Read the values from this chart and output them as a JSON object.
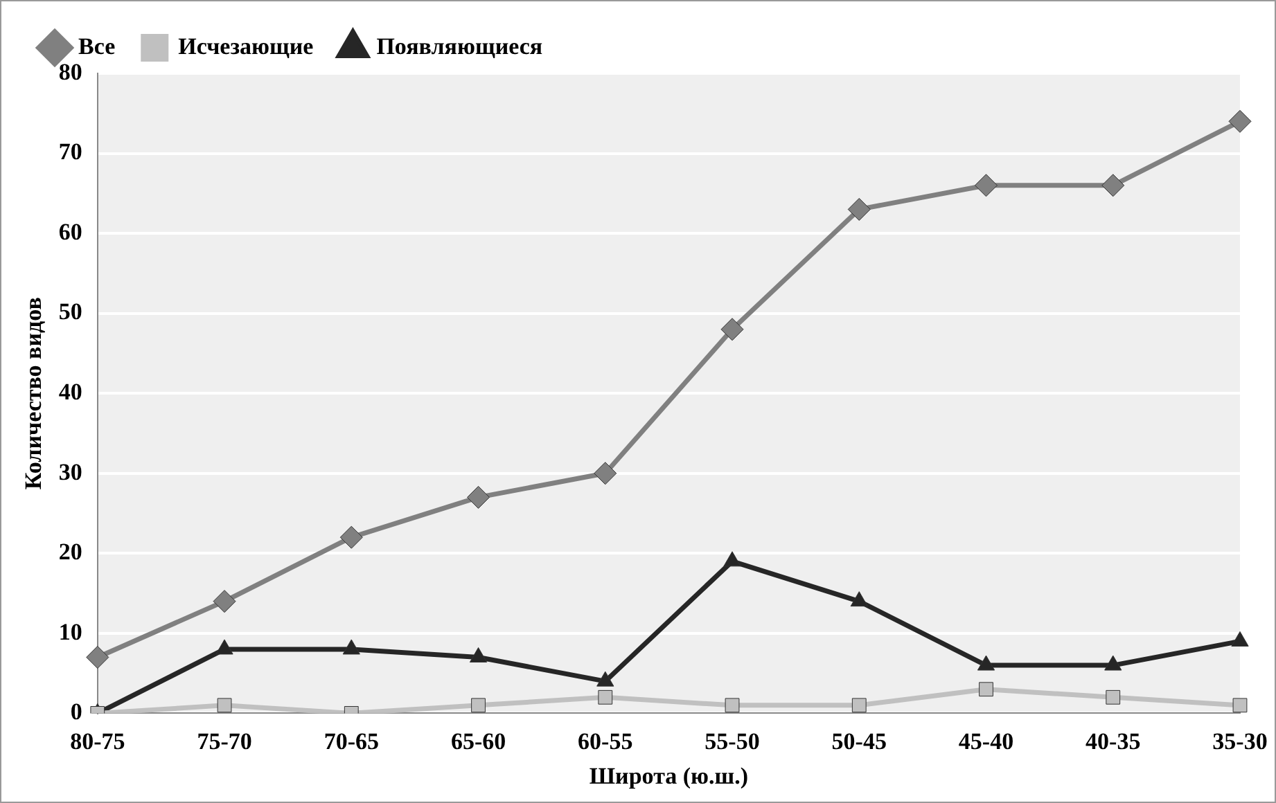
{
  "chart_data": {
    "type": "line",
    "xlabel": "Широта (ю.ш.)",
    "ylabel": "Количество видов",
    "categories": [
      "80-75",
      "75-70",
      "70-65",
      "65-60",
      "60-55",
      "55-50",
      "50-45",
      "45-40",
      "40-35",
      "35-30"
    ],
    "series": [
      {
        "name": "Все",
        "color": "#808080",
        "marker": "diamond",
        "values": [
          7,
          14,
          22,
          27,
          30,
          48,
          63,
          66,
          66,
          74
        ]
      },
      {
        "name": "Исчезающие",
        "color": "#c0c0c0",
        "marker": "square",
        "values": [
          0,
          1,
          0,
          1,
          2,
          1,
          1,
          3,
          2,
          1
        ]
      },
      {
        "name": "Появляющиеся",
        "color": "#262626",
        "marker": "triangle",
        "values": [
          0,
          8,
          8,
          7,
          4,
          19,
          14,
          6,
          6,
          9
        ]
      }
    ],
    "ylim": [
      0,
      80
    ],
    "yticks": [
      0,
      10,
      20,
      30,
      40,
      50,
      60,
      70,
      80
    ],
    "grid": "y",
    "legend": "top",
    "line_style": "solid"
  }
}
